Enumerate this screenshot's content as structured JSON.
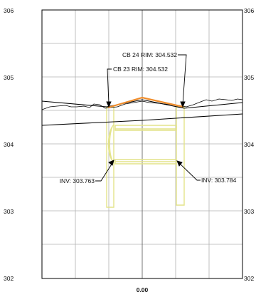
{
  "chart_data": {
    "type": "line",
    "title": "",
    "xlabel": "",
    "ylabel": "",
    "x_tick_label": "0.00",
    "y_ticks": [
      302,
      303,
      304,
      305,
      306
    ],
    "y_tick_labels": [
      "302",
      "303",
      "304",
      "305",
      "306"
    ],
    "ylim": [
      302,
      306
    ],
    "grid": true,
    "colors": {
      "grid": "#b0b0b0",
      "structure": "#e4e48a",
      "surface": "#f08c2a",
      "line": "#000000"
    },
    "annotations": [
      {
        "text": "CB 24 RIM: 304.532",
        "value": 304.532
      },
      {
        "text": "CB 23 RIM: 304.532",
        "value": 304.532
      },
      {
        "text": "INV: 303.763",
        "value": 303.763
      },
      {
        "text": "INV: 303.784",
        "value": 303.784
      }
    ]
  }
}
